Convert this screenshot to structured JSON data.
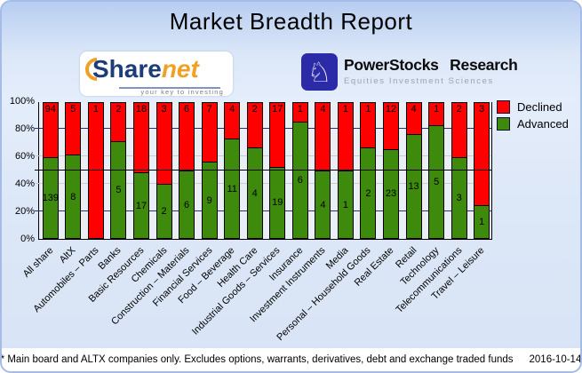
{
  "header": {
    "title": "Market Breadth Report"
  },
  "logos": {
    "sharenet": {
      "name_part1": "Share",
      "name_part2": "net",
      "tagline": "your key to investing"
    },
    "powerstocks": {
      "icon": "knight-chess-icon",
      "icon_glyph": "♘",
      "title": "PowerStocks Research",
      "subtitle": "Equities Investment Sciences"
    }
  },
  "legend": {
    "items": [
      {
        "label": "Declined",
        "color": "#ff0000"
      },
      {
        "label": "Advanced",
        "color": "#3e8a0c"
      }
    ]
  },
  "chart_data": {
    "type": "bar",
    "stacked": true,
    "normalized_to_percent": true,
    "title": "Market Breadth Report",
    "categories": [
      "All share",
      "AltX",
      "Automobiles – Parts",
      "Banks",
      "Basic Resources",
      "Chemicals",
      "Construction – Materials",
      "Financial Services",
      "Food – Beverage",
      "Health Care",
      "Industrial Goods – Services",
      "Insurance",
      "Investment Instruments",
      "Media",
      "Personal – Household Goods",
      "Real Estate",
      "Retail",
      "Technology",
      "Telecommunications",
      "Travel – Leisure"
    ],
    "series": [
      {
        "name": "Declined",
        "color": "#ff0000",
        "values": [
          94,
          5,
          1,
          2,
          18,
          3,
          6,
          7,
          4,
          2,
          17,
          1,
          4,
          1,
          1,
          12,
          4,
          1,
          2,
          3
        ]
      },
      {
        "name": "Advanced",
        "color": "#3e8a0c",
        "values": [
          139,
          8,
          0,
          5,
          17,
          2,
          6,
          9,
          11,
          4,
          19,
          6,
          4,
          1,
          2,
          23,
          13,
          5,
          3,
          1
        ]
      }
    ],
    "value_axis": {
      "min": 0,
      "max": 100,
      "unit": "%",
      "ticks": [
        "100%",
        "80%",
        "60%",
        "40%",
        "20%",
        "0%"
      ]
    },
    "reference_line_percent": 50,
    "gridlines": {
      "navy_at": [
        20,
        80
      ],
      "gray_at": [
        40,
        60
      ],
      "black_at": [
        50
      ]
    },
    "legend_position": "top-right"
  },
  "footer": {
    "note": "* Main board and ALTX companies only. Excludes options, warrants, derivatives, debt and exchange traded funds",
    "date": "2016-10-14"
  }
}
